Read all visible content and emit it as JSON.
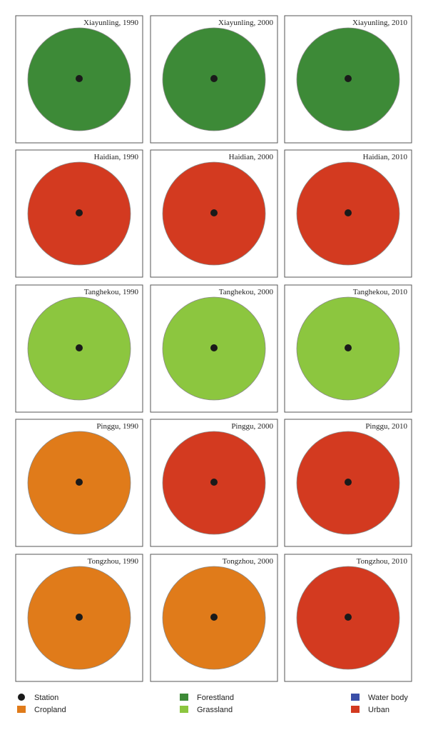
{
  "panels": [
    {
      "label": "Xiayunling, 1990"
    },
    {
      "label": "Xiayunling, 2000"
    },
    {
      "label": "Xiayunling, 2010"
    },
    {
      "label": "Haidian, 1990"
    },
    {
      "label": "Haidian, 2000"
    },
    {
      "label": "Haidian, 2010"
    },
    {
      "label": "Tanghekou, 1990"
    },
    {
      "label": "Tanghekou, 2000"
    },
    {
      "label": "Tanghekou, 2010"
    },
    {
      "label": "Pinggu, 1990"
    },
    {
      "label": "Pinggu, 2000"
    },
    {
      "label": "Pinggu, 2010"
    },
    {
      "label": "Tongzhou, 1990"
    },
    {
      "label": "Tongzhou, 2000"
    },
    {
      "label": "Tongzhou, 2010"
    }
  ],
  "legend": [
    {
      "label": "Station",
      "color": "#1a1a1a"
    },
    {
      "label": "Forestland",
      "color": "#3d8a37"
    },
    {
      "label": "Water body",
      "color": "#3a4fa8"
    },
    {
      "label": "Cropland",
      "color": "#e07b1a"
    },
    {
      "label": "Grassland",
      "color": "#8cc63f"
    },
    {
      "label": "Urban",
      "color": "#d33a20"
    }
  ]
}
